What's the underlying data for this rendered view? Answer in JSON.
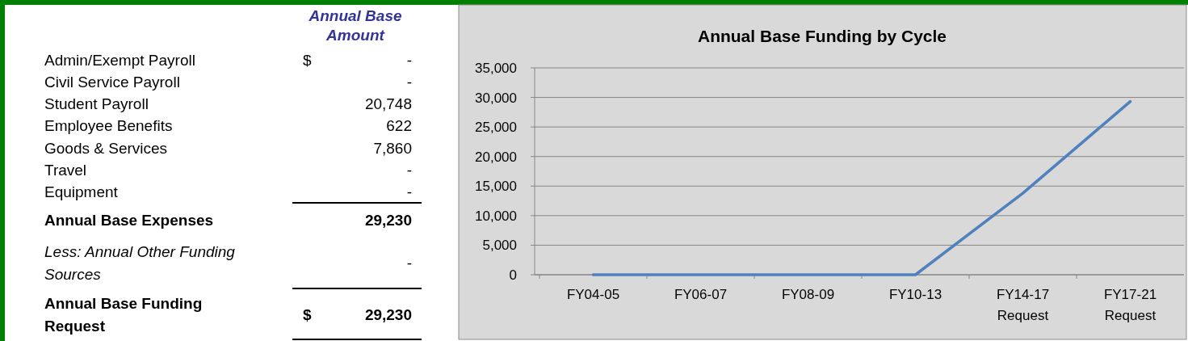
{
  "chart_data": [
    {
      "type": "other",
      "title": "Annual Base Amount",
      "categories": [
        "Admin/Exempt Payroll",
        "Civil Service Payroll",
        "Student Payroll",
        "Employee Benefits",
        "Goods & Services",
        "Travel",
        "Equipment",
        "Annual Base Expenses",
        "Less: Annual Other Funding Sources",
        "Annual Base Funding Request"
      ],
      "value_labels": [
        "$ -",
        "-",
        "20,748",
        "622",
        "7,860",
        "-",
        "-",
        "29,230",
        "-",
        "$ 29,230"
      ]
    },
    {
      "type": "line",
      "title": "Annual Base Funding by Cycle",
      "categories": [
        "FY04-05",
        "FY06-07",
        "FY08-09",
        "FY10-13",
        "FY14-17 Request",
        "FY17-21 Request"
      ],
      "series": [
        {
          "color": "#4f81bd",
          "values": [
            0,
            0,
            0,
            0,
            13800,
            29300
          ]
        }
      ],
      "ylim": [
        0,
        35000
      ],
      "yticks": [
        {
          "value": 0,
          "label": "0"
        },
        {
          "value": 5000,
          "label": "5,000"
        },
        {
          "value": 10000,
          "label": "10,000"
        },
        {
          "value": 15000,
          "label": "15,000"
        },
        {
          "value": 20000,
          "label": "20,000"
        },
        {
          "value": 25000,
          "label": "25,000"
        },
        {
          "value": 30000,
          "label": "30,000"
        },
        {
          "value": 35000,
          "label": "35,000"
        }
      ],
      "grid": "y",
      "marker": "none",
      "line_style": "solid"
    }
  ]
}
